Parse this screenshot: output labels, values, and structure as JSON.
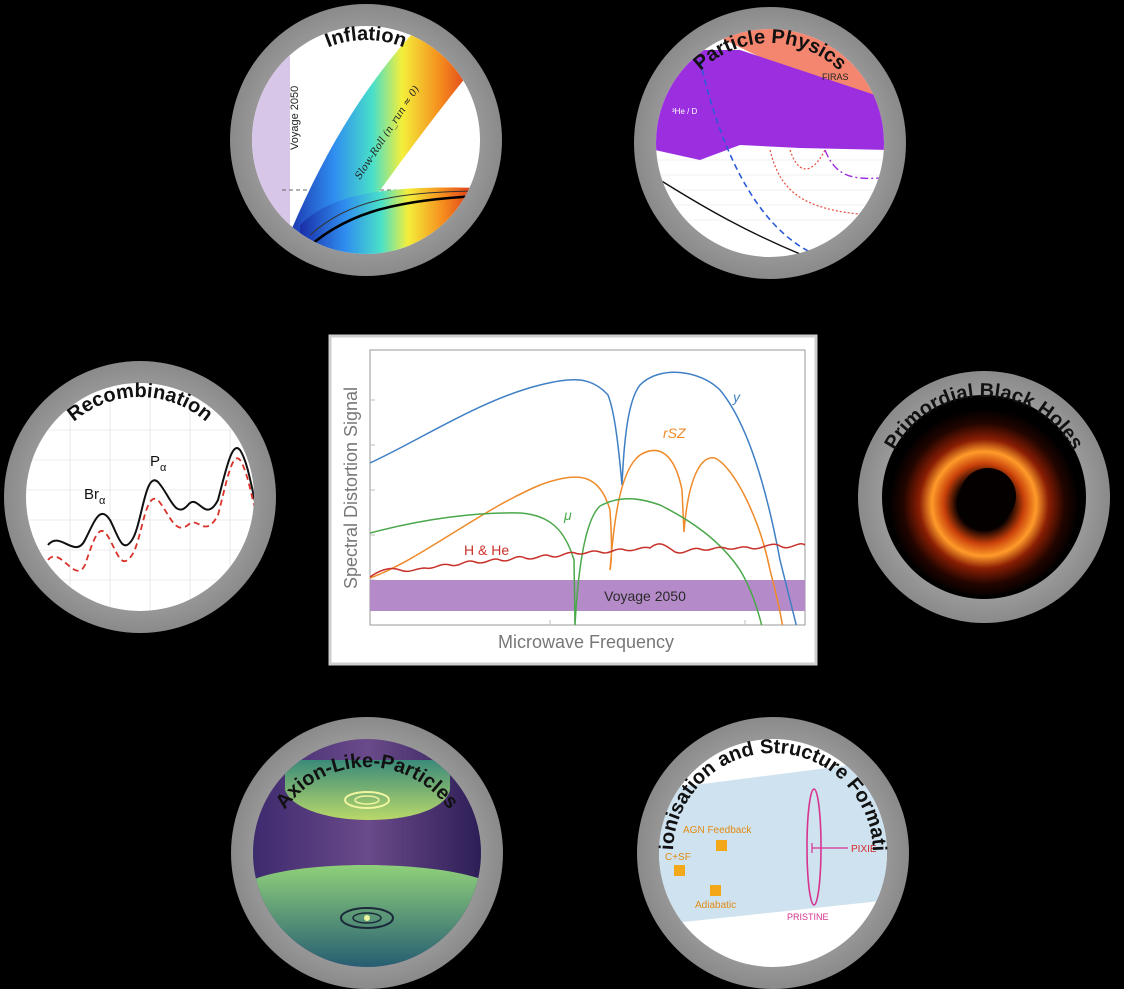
{
  "center": {
    "y_axis_label": "Spectral Distortion Signal",
    "x_axis_label": "Microwave Frequency",
    "band_label": "Voyage 2050",
    "curve_labels": {
      "y": "y",
      "rsz": "rSZ",
      "mu": "μ",
      "hhe": "H & He"
    },
    "colors": {
      "y": "#3f7fc4",
      "rsz": "#ef8a2a",
      "mu": "#4aa84a",
      "hhe": "#c8322b",
      "band": "#b07ec6"
    }
  },
  "topics": {
    "inflation": {
      "title": "Inflation",
      "band_label": "Voyage 2050",
      "curve_label": "Slow-Roll (n_run ≈ 0)"
    },
    "particle_physics": {
      "title": "Particle Physics",
      "firas_label": "FIRAS",
      "hed_label": "³He / D"
    },
    "recombination": {
      "title": "Recombination",
      "br_label": "Br",
      "p_label": "P",
      "subscript": "α"
    },
    "black_holes": {
      "title": "Primordial Black Holes"
    },
    "axions": {
      "title": "Axion-Like-Particles"
    },
    "reionisation": {
      "title": "Reionisation and Structure Formation",
      "agn_label": "AGN Feedback",
      "csf_label": "C+SF",
      "adiabatic_label": "Adiabatic",
      "pixie_label": "PIXIE",
      "pristine_label": "PRISTINE"
    }
  }
}
